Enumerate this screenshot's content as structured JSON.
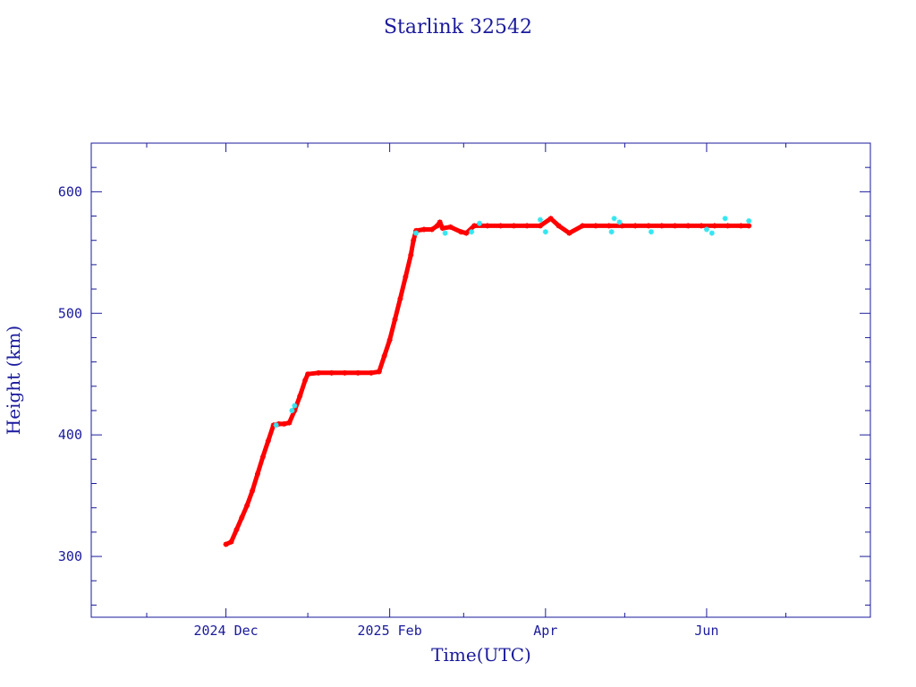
{
  "chart_data": {
    "type": "scatter",
    "title": "Starlink 32542",
    "xlabel": "Time(UTC)",
    "ylabel": "Height (km)",
    "x_unit": "date",
    "xlim": [
      "2024-10-11",
      "2025-08-02"
    ],
    "ylim": [
      250,
      640
    ],
    "x_ticks": [
      {
        "date": "2024-12-01",
        "label": "2024 Dec"
      },
      {
        "date": "2025-02-01",
        "label": "2025 Feb"
      },
      {
        "date": "2025-04-01",
        "label": "Apr"
      },
      {
        "date": "2025-06-01",
        "label": "Jun"
      }
    ],
    "x_minor_ticks": [
      "2024-11-01",
      "2025-01-01",
      "2025-03-01",
      "2025-05-01",
      "2025-07-01"
    ],
    "y_ticks": [
      300,
      400,
      500,
      600
    ],
    "y_minor_step": 20,
    "grid": false,
    "colors": {
      "axis": "#1a1a9c",
      "primary": "#ff0000",
      "secondary": "#33e6f0"
    },
    "series": [
      {
        "color": "#ff0000",
        "points": [
          [
            "2024-12-01",
            310
          ],
          [
            "2024-12-03",
            312
          ],
          [
            "2024-12-05",
            322
          ],
          [
            "2024-12-07",
            332
          ],
          [
            "2024-12-09",
            342
          ],
          [
            "2024-12-11",
            354
          ],
          [
            "2024-12-13",
            368
          ],
          [
            "2024-12-15",
            382
          ],
          [
            "2024-12-17",
            395
          ],
          [
            "2024-12-19",
            408
          ],
          [
            "2024-12-21",
            409
          ],
          [
            "2024-12-23",
            409
          ],
          [
            "2024-12-25",
            410
          ],
          [
            "2024-12-27",
            420
          ],
          [
            "2024-12-29",
            432
          ],
          [
            "2024-12-31",
            445
          ],
          [
            "2025-01-01",
            450
          ],
          [
            "2025-01-05",
            451
          ],
          [
            "2025-01-10",
            451
          ],
          [
            "2025-01-15",
            451
          ],
          [
            "2025-01-20",
            451
          ],
          [
            "2025-01-25",
            451
          ],
          [
            "2025-01-28",
            452
          ],
          [
            "2025-01-30",
            465
          ],
          [
            "2025-02-01",
            478
          ],
          [
            "2025-02-03",
            495
          ],
          [
            "2025-02-05",
            512
          ],
          [
            "2025-02-07",
            530
          ],
          [
            "2025-02-09",
            548
          ],
          [
            "2025-02-10",
            560
          ],
          [
            "2025-02-11",
            568
          ],
          [
            "2025-02-14",
            569
          ],
          [
            "2025-02-17",
            569
          ],
          [
            "2025-02-19",
            572
          ],
          [
            "2025-02-20",
            575
          ],
          [
            "2025-02-21",
            570
          ],
          [
            "2025-02-24",
            571
          ],
          [
            "2025-02-28",
            567
          ],
          [
            "2025-03-02",
            566
          ],
          [
            "2025-03-05",
            572
          ],
          [
            "2025-03-10",
            572
          ],
          [
            "2025-03-15",
            572
          ],
          [
            "2025-03-20",
            572
          ],
          [
            "2025-03-25",
            572
          ],
          [
            "2025-03-30",
            572
          ],
          [
            "2025-04-03",
            578
          ],
          [
            "2025-04-06",
            572
          ],
          [
            "2025-04-10",
            566
          ],
          [
            "2025-04-15",
            572
          ],
          [
            "2025-04-20",
            572
          ],
          [
            "2025-04-25",
            572
          ],
          [
            "2025-04-30",
            572
          ],
          [
            "2025-05-05",
            572
          ],
          [
            "2025-05-10",
            572
          ],
          [
            "2025-05-15",
            572
          ],
          [
            "2025-05-20",
            572
          ],
          [
            "2025-05-25",
            572
          ],
          [
            "2025-05-30",
            572
          ],
          [
            "2025-06-04",
            572
          ],
          [
            "2025-06-09",
            572
          ],
          [
            "2025-06-14",
            572
          ],
          [
            "2025-06-17",
            572
          ]
        ]
      },
      {
        "color": "#33e6f0",
        "points": [
          [
            "2024-12-20",
            408
          ],
          [
            "2024-12-26",
            420
          ],
          [
            "2024-12-27",
            424
          ],
          [
            "2025-02-11",
            566
          ],
          [
            "2025-02-22",
            566
          ],
          [
            "2025-03-04",
            567
          ],
          [
            "2025-03-07",
            574
          ],
          [
            "2025-03-30",
            577
          ],
          [
            "2025-04-01",
            567
          ],
          [
            "2025-04-26",
            567
          ],
          [
            "2025-04-27",
            578
          ],
          [
            "2025-04-29",
            575
          ],
          [
            "2025-05-11",
            567
          ],
          [
            "2025-06-01",
            569
          ],
          [
            "2025-06-03",
            566
          ],
          [
            "2025-06-08",
            578
          ],
          [
            "2025-06-17",
            576
          ]
        ]
      }
    ]
  }
}
